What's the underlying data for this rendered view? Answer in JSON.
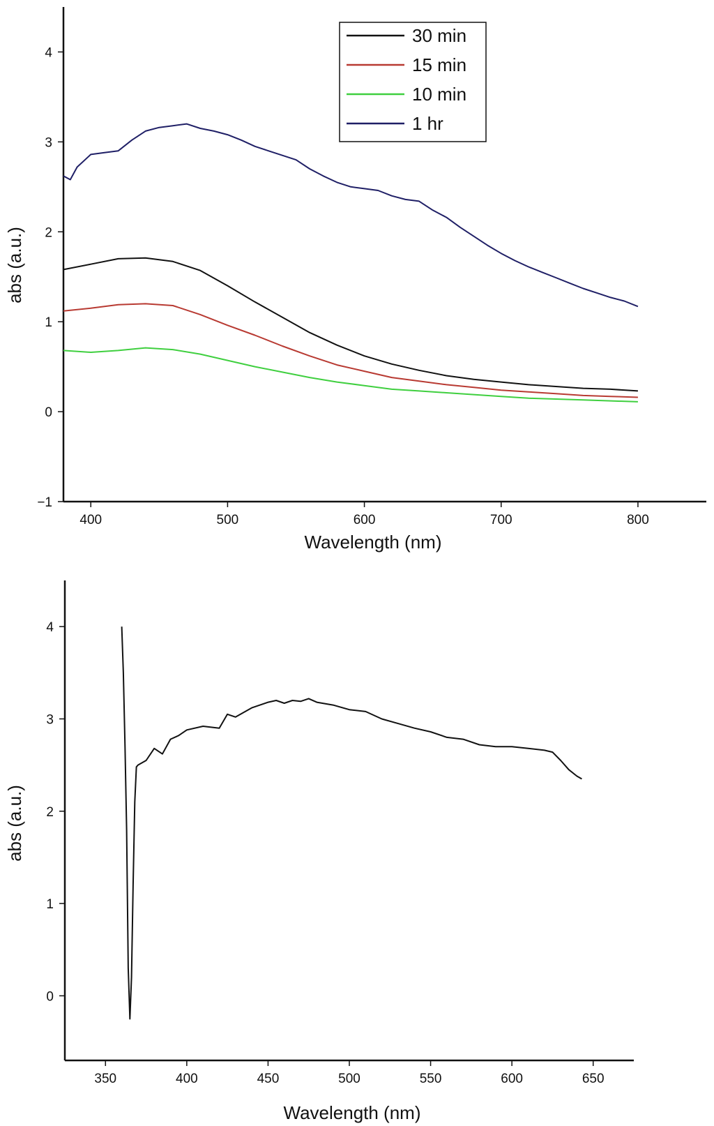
{
  "chart_data": [
    {
      "type": "line",
      "xlabel": "Wavelength (nm)",
      "ylabel": "abs (a.u.)",
      "xlim": [
        380,
        850
      ],
      "ylim": [
        -1,
        4.5
      ],
      "xticks": [
        400,
        500,
        600,
        700,
        800
      ],
      "xtick_labels": [
        "400",
        "500",
        "600",
        "700",
        "800"
      ],
      "yticks": [
        -1,
        0,
        1,
        2,
        3,
        4
      ],
      "ytick_labels": [
        "−1",
        "0",
        "1",
        "2",
        "3",
        "4"
      ],
      "grid": false,
      "legend_position": "top-right",
      "series": [
        {
          "name": "30 min",
          "color": "#111111",
          "x": [
            380,
            400,
            420,
            440,
            460,
            480,
            500,
            520,
            540,
            560,
            580,
            600,
            620,
            640,
            660,
            680,
            700,
            720,
            740,
            760,
            780,
            800
          ],
          "y": [
            1.58,
            1.64,
            1.7,
            1.71,
            1.67,
            1.57,
            1.4,
            1.22,
            1.05,
            0.88,
            0.74,
            0.62,
            0.53,
            0.46,
            0.4,
            0.36,
            0.33,
            0.3,
            0.28,
            0.26,
            0.25,
            0.23
          ]
        },
        {
          "name": "15 min",
          "color": "#b83a32",
          "x": [
            380,
            400,
            420,
            440,
            460,
            480,
            500,
            520,
            540,
            560,
            580,
            600,
            620,
            640,
            660,
            680,
            700,
            720,
            740,
            760,
            780,
            800
          ],
          "y": [
            1.12,
            1.15,
            1.19,
            1.2,
            1.18,
            1.08,
            0.96,
            0.85,
            0.73,
            0.62,
            0.52,
            0.45,
            0.38,
            0.34,
            0.3,
            0.27,
            0.24,
            0.22,
            0.2,
            0.18,
            0.17,
            0.16
          ]
        },
        {
          "name": "10 min",
          "color": "#3fcf3f",
          "x": [
            380,
            400,
            420,
            440,
            460,
            480,
            500,
            520,
            540,
            560,
            580,
            600,
            620,
            640,
            660,
            680,
            700,
            720,
            740,
            760,
            780,
            800
          ],
          "y": [
            0.68,
            0.66,
            0.68,
            0.71,
            0.69,
            0.64,
            0.57,
            0.5,
            0.44,
            0.38,
            0.33,
            0.29,
            0.25,
            0.23,
            0.21,
            0.19,
            0.17,
            0.15,
            0.14,
            0.13,
            0.12,
            0.11
          ]
        },
        {
          "name": "1 hr",
          "color": "#1f1f66",
          "x": [
            380,
            385,
            390,
            400,
            410,
            420,
            430,
            440,
            450,
            460,
            470,
            480,
            490,
            500,
            510,
            520,
            530,
            540,
            550,
            560,
            570,
            580,
            590,
            600,
            610,
            620,
            630,
            640,
            650,
            660,
            670,
            680,
            690,
            700,
            710,
            720,
            730,
            740,
            750,
            760,
            770,
            780,
            790,
            800
          ],
          "y": [
            2.62,
            2.58,
            2.72,
            2.86,
            2.88,
            2.9,
            3.02,
            3.12,
            3.16,
            3.18,
            3.2,
            3.15,
            3.12,
            3.08,
            3.02,
            2.95,
            2.9,
            2.85,
            2.8,
            2.7,
            2.62,
            2.55,
            2.5,
            2.48,
            2.46,
            2.4,
            2.36,
            2.34,
            2.24,
            2.16,
            2.05,
            1.95,
            1.85,
            1.76,
            1.68,
            1.61,
            1.55,
            1.49,
            1.43,
            1.37,
            1.32,
            1.27,
            1.23,
            1.17
          ]
        }
      ]
    },
    {
      "type": "line",
      "xlabel": "Wavelength (nm)",
      "ylabel": "abs (a.u.)",
      "xlim": [
        325,
        675
      ],
      "ylim": [
        -0.7,
        4.5
      ],
      "xticks": [
        350,
        400,
        450,
        500,
        550,
        600,
        650
      ],
      "xtick_labels": [
        "350",
        "400",
        "450",
        "500",
        "550",
        "600",
        "650"
      ],
      "yticks": [
        0,
        1,
        2,
        3,
        4
      ],
      "ytick_labels": [
        "0",
        "1",
        "2",
        "3",
        "4"
      ],
      "grid": false,
      "series": [
        {
          "color": "#111111",
          "x": [
            360,
            361,
            362,
            363,
            364,
            365,
            366,
            367,
            368,
            369,
            370,
            375,
            380,
            385,
            390,
            395,
            400,
            410,
            420,
            425,
            430,
            440,
            450,
            455,
            460,
            465,
            470,
            475,
            480,
            490,
            500,
            510,
            520,
            530,
            540,
            550,
            560,
            570,
            580,
            590,
            600,
            610,
            620,
            625,
            630,
            635,
            640,
            643
          ],
          "y": [
            4.0,
            3.5,
            2.7,
            1.8,
            0.3,
            -0.25,
            0.2,
            1.2,
            2.1,
            2.48,
            2.5,
            2.55,
            2.68,
            2.62,
            2.78,
            2.82,
            2.88,
            2.92,
            2.9,
            3.05,
            3.02,
            3.12,
            3.18,
            3.2,
            3.17,
            3.2,
            3.19,
            3.22,
            3.18,
            3.15,
            3.1,
            3.08,
            3.0,
            2.95,
            2.9,
            2.86,
            2.8,
            2.78,
            2.72,
            2.7,
            2.7,
            2.68,
            2.66,
            2.64,
            2.55,
            2.45,
            2.38,
            2.35
          ]
        }
      ]
    }
  ]
}
